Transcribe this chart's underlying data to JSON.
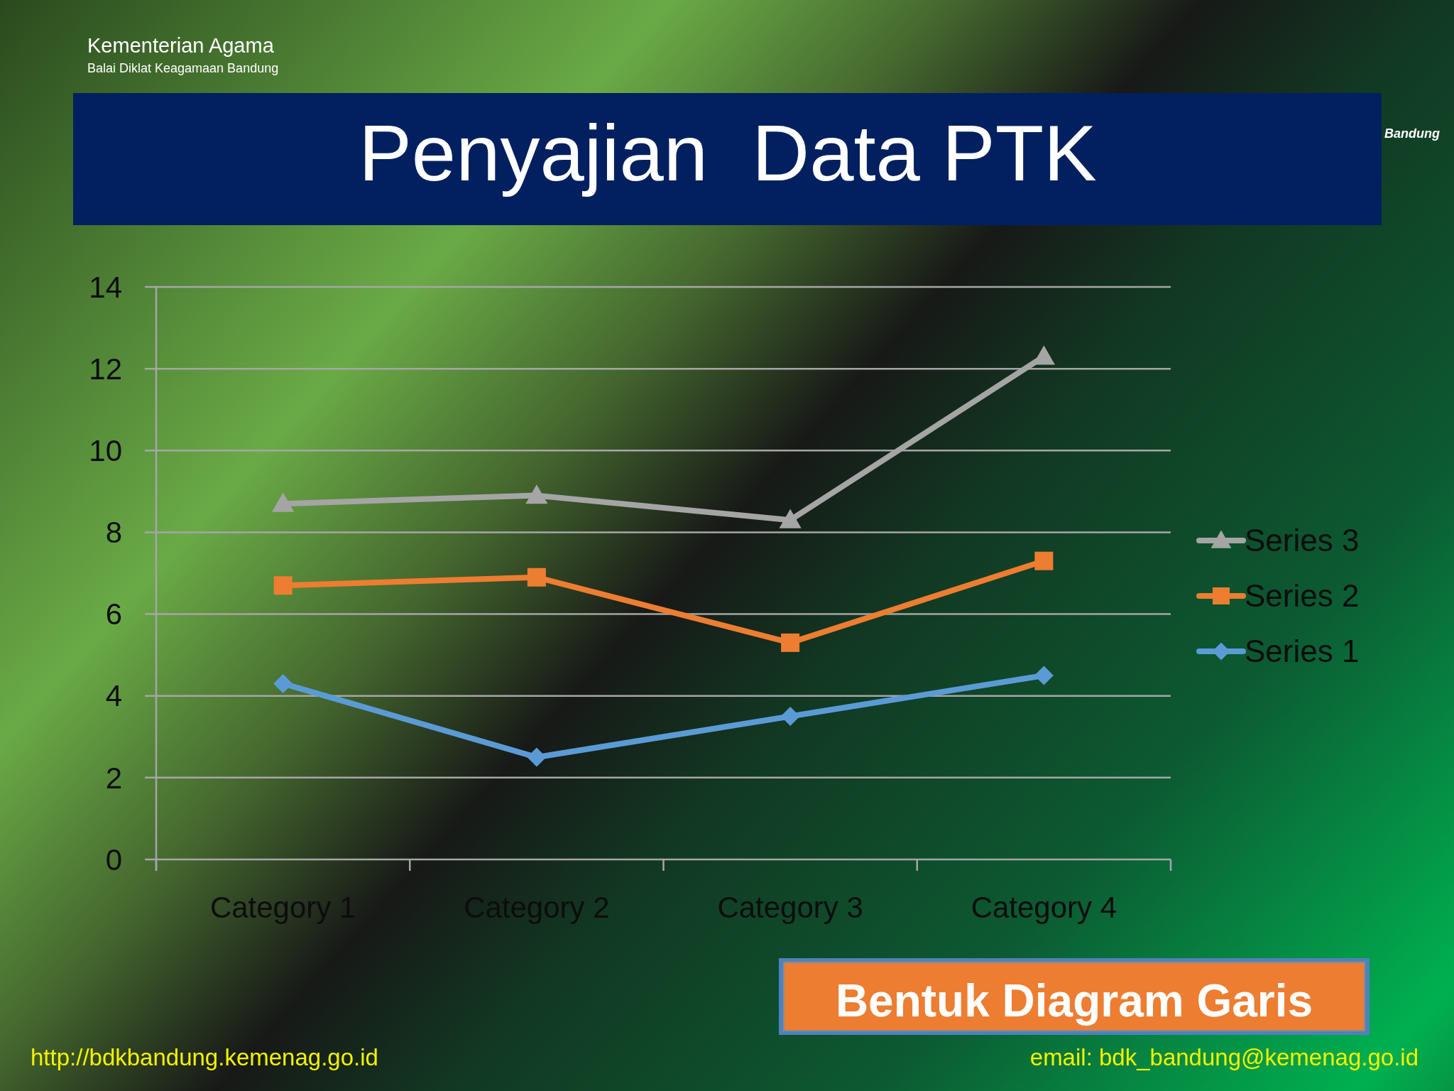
{
  "chart_data": {
    "type": "line",
    "title": "Penyajian  Data PTK",
    "annotations": [
      "Kementerian Agama",
      "Balai Diklat Keagamaan Bandung",
      "Bandung",
      "Bentuk Diagram Garis",
      "http://bdkbandung.kemenag.go.id",
      "email: bdk_bandung@kemenag.go.id"
    ],
    "categories": [
      "Category 1",
      "Category 2",
      "Category 3",
      "Category 4"
    ],
    "series": [
      {
        "name": "Series 1",
        "color": "#5b9bd5",
        "marker": "diamond",
        "values": [
          4.3,
          2.5,
          3.5,
          4.5
        ]
      },
      {
        "name": "Series 2",
        "color": "#ed7d31",
        "marker": "square",
        "values": [
          6.7,
          6.9,
          5.3,
          7.3
        ]
      },
      {
        "name": "Series 3",
        "color": "#a5a5a5",
        "marker": "triangle",
        "values": [
          8.7,
          8.9,
          8.3,
          12.3
        ]
      }
    ],
    "ylim": [
      0,
      14
    ],
    "yticks": [
      0,
      2,
      4,
      6,
      8,
      10,
      12,
      14
    ],
    "grid": "y",
    "legend": "right",
    "line_style": "solid"
  }
}
